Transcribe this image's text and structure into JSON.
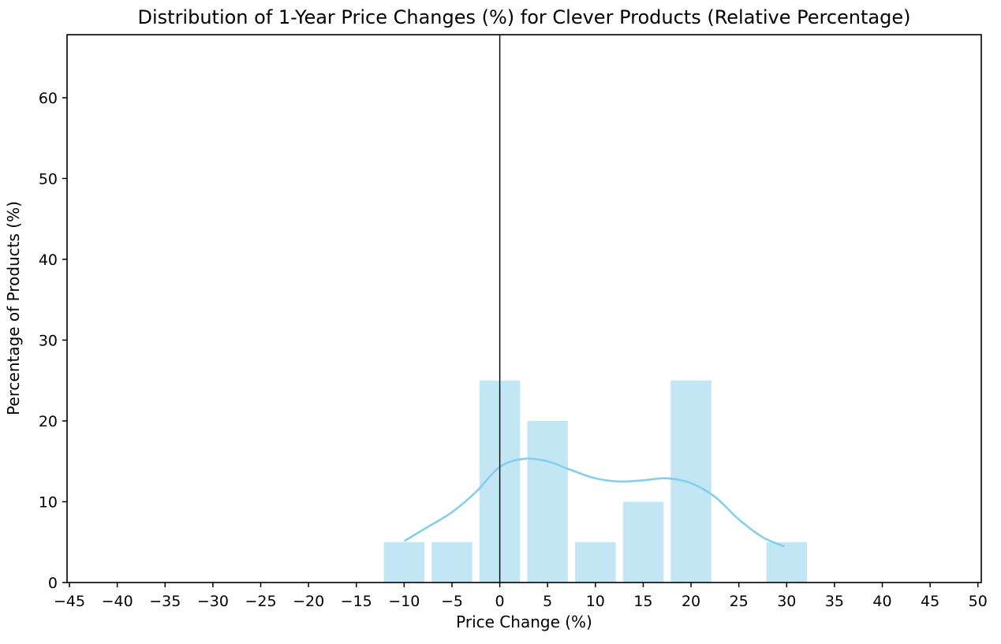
{
  "chart_data": {
    "type": "bar",
    "subtype": "histogram_with_kde",
    "title": "Distribution of 1-Year Price Changes (%) for Clever Products (Relative Percentage)",
    "xlabel": "Price Change (%)",
    "ylabel": "Percentage of Products (%)",
    "xlim": [
      -45.25,
      50.35
    ],
    "ylim": [
      0,
      67.8
    ],
    "grid": false,
    "legend": "none",
    "xticks": [
      -45,
      -40,
      -35,
      -30,
      -25,
      -20,
      -15,
      -10,
      -5,
      0,
      5,
      10,
      15,
      20,
      25,
      30,
      35,
      40,
      45,
      50
    ],
    "xtick_labels": [
      "−45",
      "−40",
      "−35",
      "−30",
      "−25",
      "−20",
      "−15",
      "−10",
      "−5",
      "0",
      "5",
      "10",
      "15",
      "20",
      "25",
      "30",
      "35",
      "40",
      "45",
      "50"
    ],
    "yticks": [
      0,
      10,
      20,
      30,
      40,
      50,
      60
    ],
    "ytick_labels": [
      "0",
      "10",
      "20",
      "30",
      "40",
      "50",
      "60"
    ],
    "bars": {
      "bin_width": 5,
      "drawn_width": 4.25,
      "centers": [
        -10,
        -5,
        0,
        5,
        10,
        15,
        20,
        30
      ],
      "heights": [
        5,
        5,
        25,
        20,
        5,
        10,
        25,
        5
      ]
    },
    "kde": {
      "x": [
        -9.9,
        -7.5,
        -5.0,
        -2.5,
        0.0,
        2.5,
        5.0,
        7.5,
        10.0,
        12.5,
        15.0,
        17.5,
        20.0,
        22.5,
        25.0,
        27.5,
        29.7
      ],
      "y": [
        5.2,
        6.9,
        8.7,
        11.2,
        14.3,
        15.3,
        15.0,
        13.9,
        12.9,
        12.5,
        12.65,
        12.9,
        12.3,
        10.6,
        7.8,
        5.6,
        4.5
      ]
    },
    "vline_x": 0,
    "colors": {
      "bar_fill": "#87ceeb",
      "bar_alpha": 0.5,
      "kde_line": "#87ceeb",
      "vline": "#000000",
      "axes": "#000000",
      "background": "#ffffff"
    }
  }
}
